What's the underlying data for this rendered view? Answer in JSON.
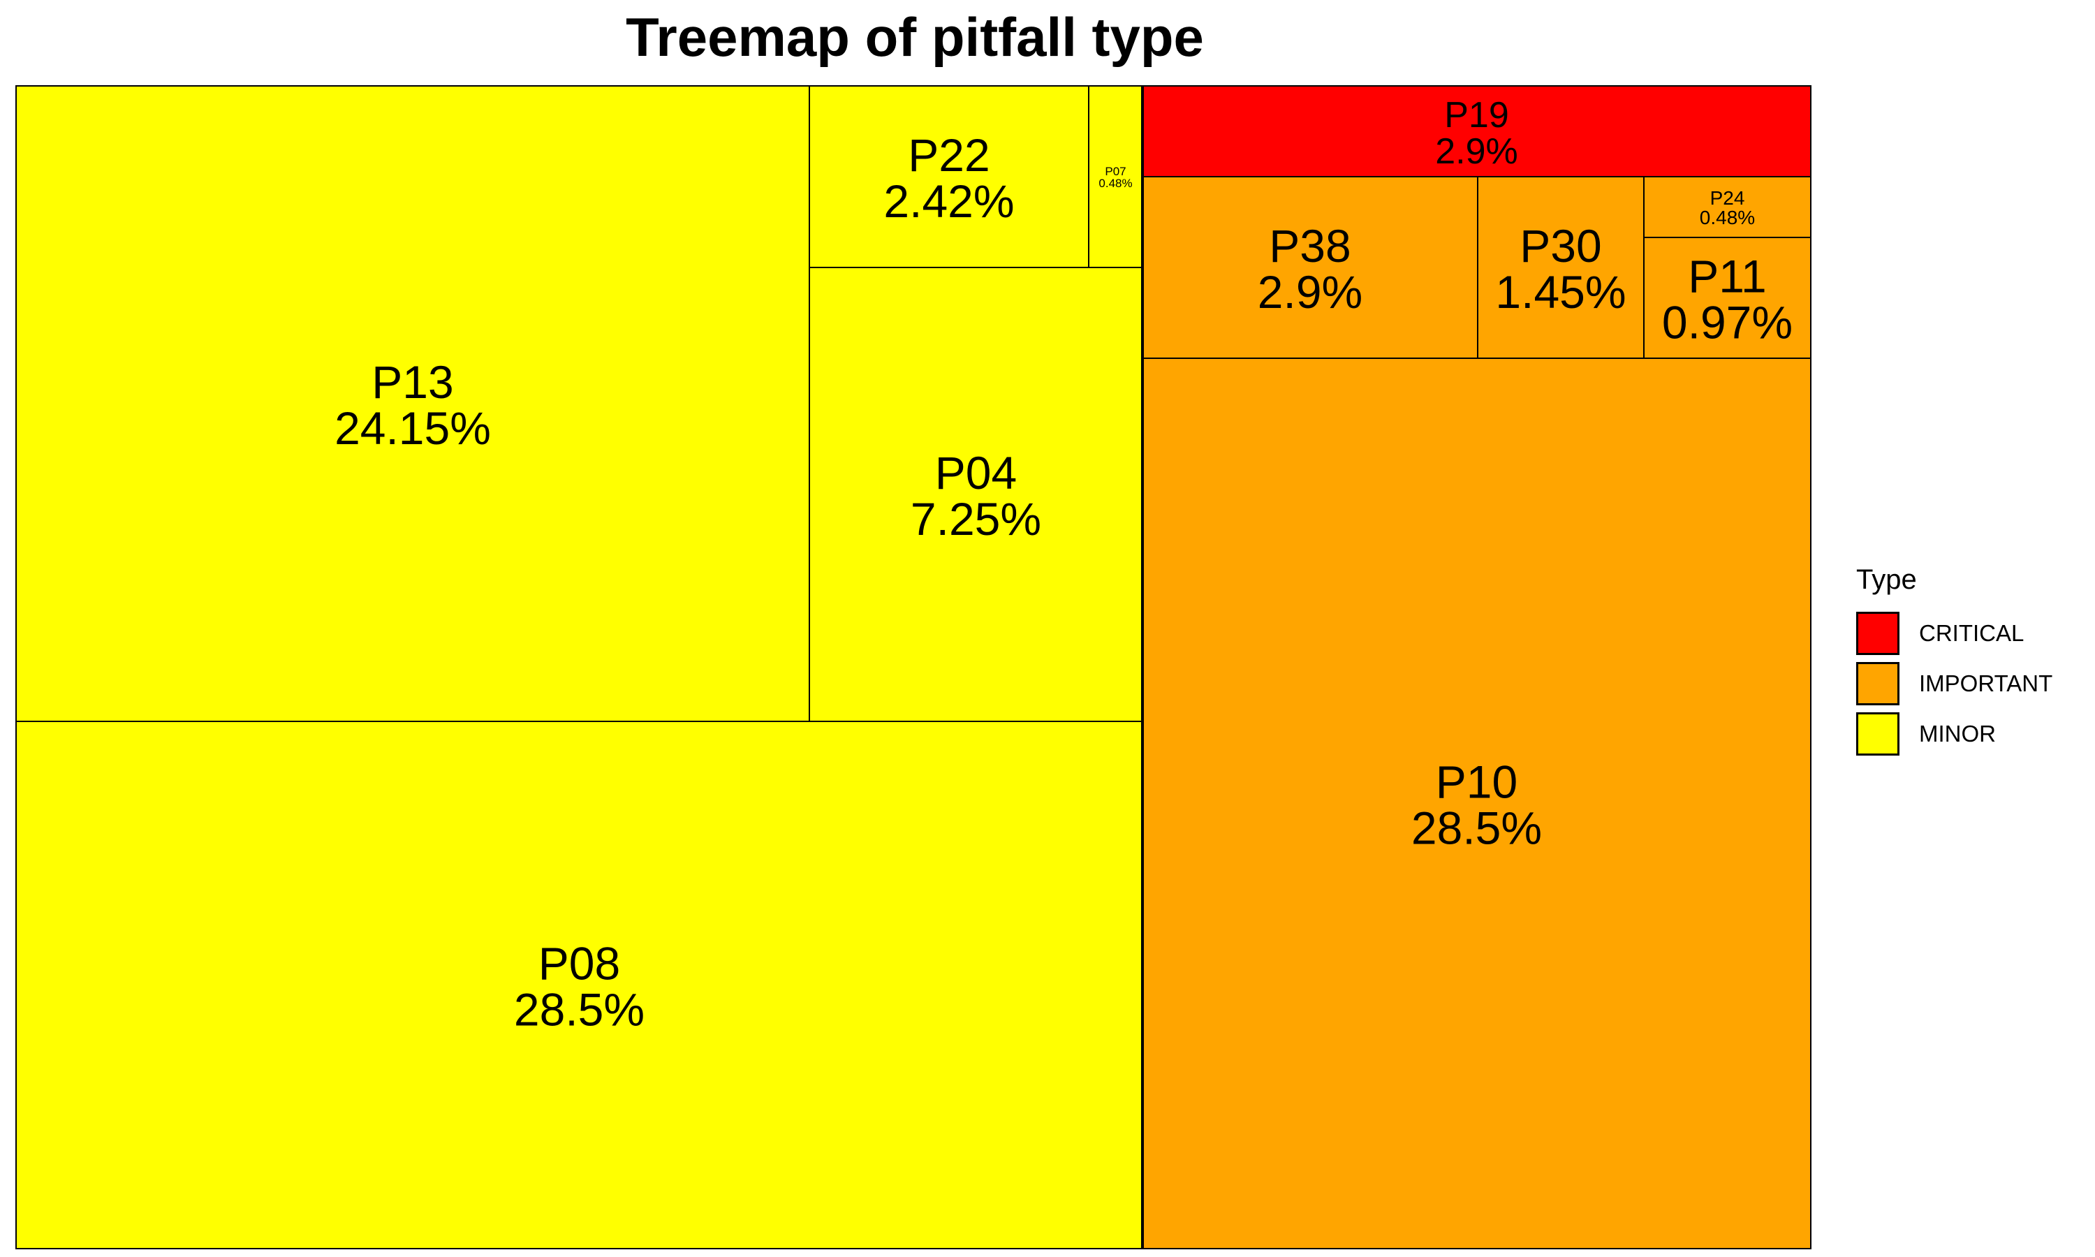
{
  "chart_data": {
    "type": "treemap",
    "title": "Treemap of pitfall type",
    "legend": {
      "title": "Type",
      "position": "right",
      "entries": [
        {
          "label": "CRITICAL",
          "color": "#ff0000"
        },
        {
          "label": "IMPORTANT",
          "color": "#ffa500"
        },
        {
          "label": "MINOR",
          "color": "#ffff00"
        }
      ]
    },
    "groups": [
      {
        "type": "MINOR",
        "color": "#ffff00",
        "items": [
          {
            "name": "P08",
            "label": "28.5%",
            "value": 28.5
          },
          {
            "name": "P13",
            "label": "24.15%",
            "value": 24.15
          },
          {
            "name": "P04",
            "label": "7.25%",
            "value": 7.25
          },
          {
            "name": "P22",
            "label": "2.42%",
            "value": 2.42
          },
          {
            "name": "P07",
            "label": "0.48%",
            "value": 0.48
          }
        ]
      },
      {
        "type": "IMPORTANT",
        "color": "#ffa500",
        "items": [
          {
            "name": "P10",
            "label": "28.5%",
            "value": 28.5
          },
          {
            "name": "P38",
            "label": "2.9%",
            "value": 2.9
          },
          {
            "name": "P30",
            "label": "1.45%",
            "value": 1.45
          },
          {
            "name": "P11",
            "label": "0.97%",
            "value": 0.97
          },
          {
            "name": "P24",
            "label": "0.48%",
            "value": 0.48
          }
        ]
      },
      {
        "type": "CRITICAL",
        "color": "#ff0000",
        "items": [
          {
            "name": "P19",
            "label": "2.9%",
            "value": 2.9
          }
        ]
      }
    ]
  }
}
